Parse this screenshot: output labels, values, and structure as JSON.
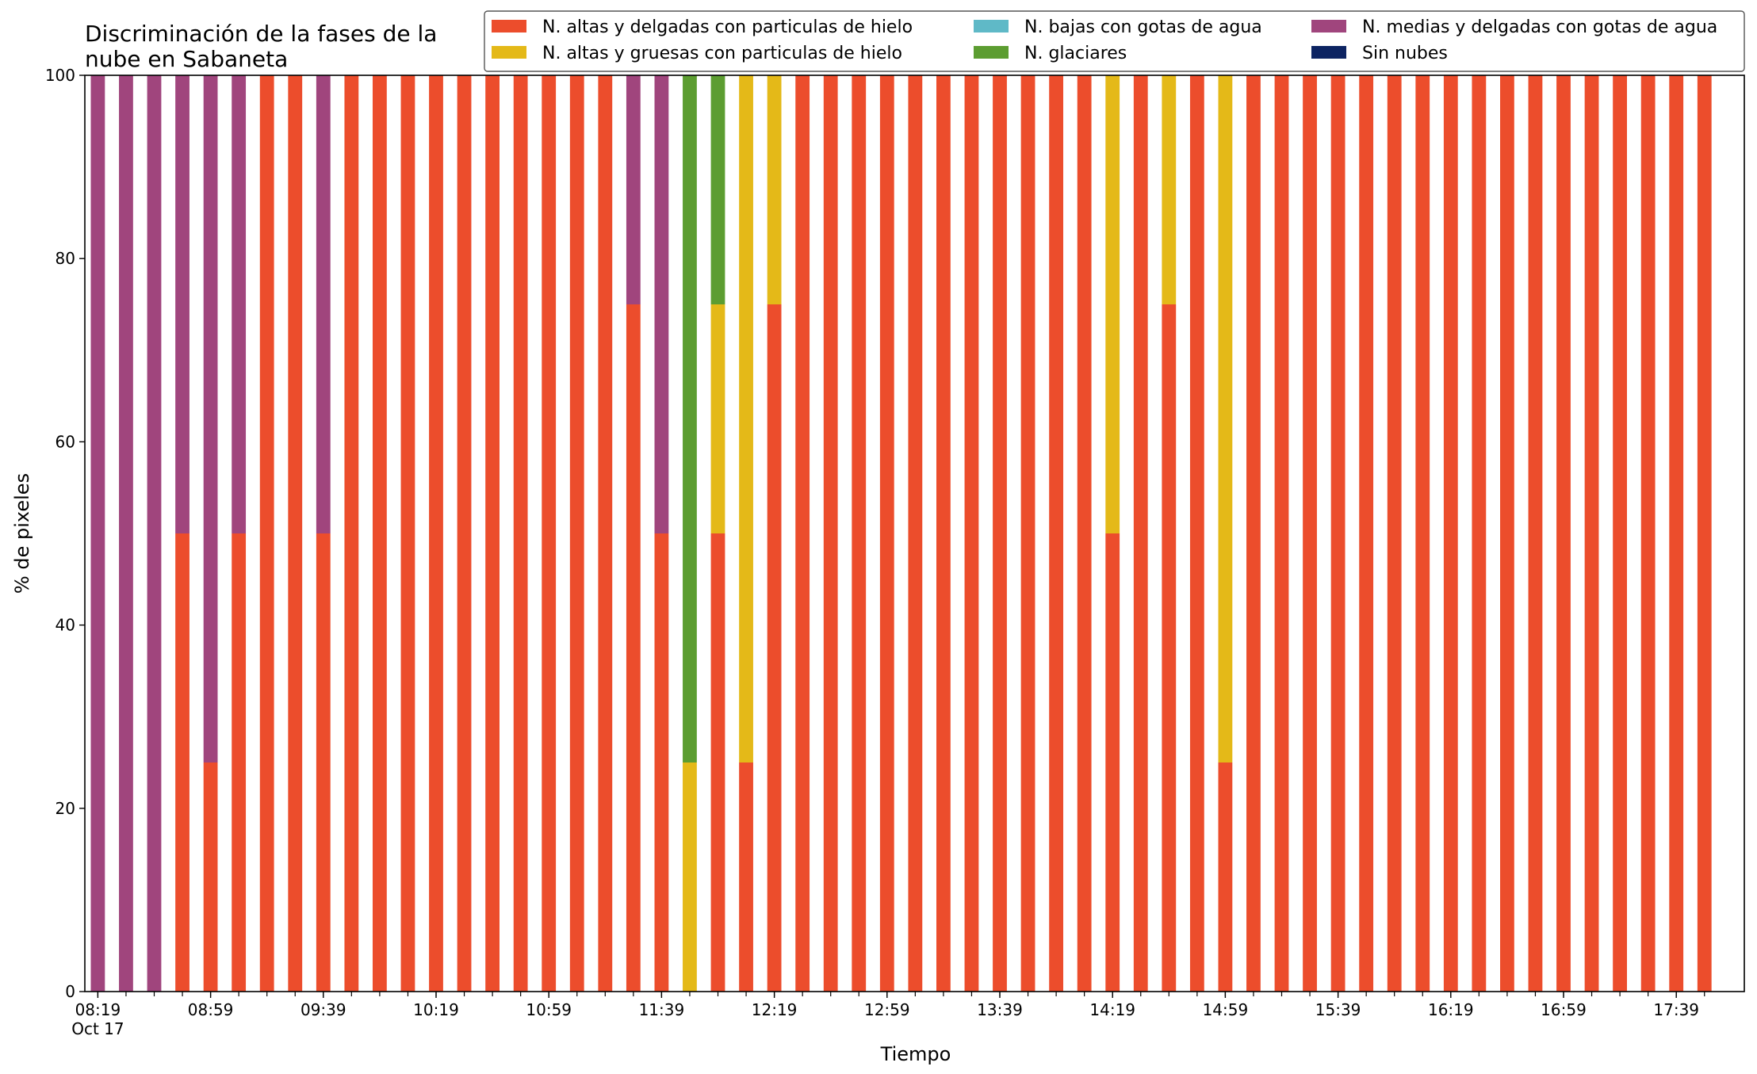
{
  "chart_data": {
    "type": "bar",
    "stacked": true,
    "title_lines": [
      "Discriminación de la fases de la",
      "nube en Sabaneta"
    ],
    "xlabel": "Tiempo",
    "ylabel": "% de pixeles",
    "ylim": [
      0,
      100
    ],
    "yticks": [
      0,
      20,
      40,
      60,
      80,
      100
    ],
    "x_tick_labels": [
      {
        "index": 0,
        "label": "08:19",
        "sublabel": "Oct 17"
      },
      {
        "index": 4,
        "label": "08:59"
      },
      {
        "index": 8,
        "label": "09:39"
      },
      {
        "index": 12,
        "label": "10:19"
      },
      {
        "index": 16,
        "label": "10:59"
      },
      {
        "index": 20,
        "label": "11:39"
      },
      {
        "index": 24,
        "label": "12:19"
      },
      {
        "index": 28,
        "label": "12:59"
      },
      {
        "index": 32,
        "label": "13:39"
      },
      {
        "index": 36,
        "label": "14:19"
      },
      {
        "index": 40,
        "label": "14:59"
      },
      {
        "index": 44,
        "label": "15:39"
      },
      {
        "index": 48,
        "label": "16:19"
      },
      {
        "index": 52,
        "label": "16:59"
      },
      {
        "index": 56,
        "label": "17:39"
      }
    ],
    "bar_count": 58,
    "legend_position": "top-right",
    "grid": false,
    "series": [
      {
        "name": "N. altas y delgadas con particulas de hielo",
        "color": "#ec4d2c",
        "values": [
          0,
          0,
          0,
          50,
          25,
          50,
          100,
          100,
          50,
          100,
          100,
          100,
          100,
          100,
          100,
          100,
          100,
          100,
          100,
          75,
          50,
          0,
          50,
          25,
          75,
          100,
          100,
          100,
          100,
          100,
          100,
          100,
          100,
          100,
          100,
          100,
          50,
          100,
          75,
          100,
          25,
          100,
          100,
          100,
          100,
          100,
          100,
          100,
          100,
          100,
          100,
          100,
          100,
          100,
          100,
          100,
          100,
          100
        ]
      },
      {
        "name": "N. altas y gruesas con particulas de hielo",
        "color": "#e4b918",
        "values": [
          0,
          0,
          0,
          0,
          0,
          0,
          0,
          0,
          0,
          0,
          0,
          0,
          0,
          0,
          0,
          0,
          0,
          0,
          0,
          0,
          0,
          25,
          25,
          75,
          25,
          0,
          0,
          0,
          0,
          0,
          0,
          0,
          0,
          0,
          0,
          0,
          50,
          0,
          25,
          0,
          75,
          0,
          0,
          0,
          0,
          0,
          0,
          0,
          0,
          0,
          0,
          0,
          0,
          0,
          0,
          0,
          0,
          0
        ]
      },
      {
        "name": "N. bajas con gotas de agua",
        "color": "#5fb9c7",
        "values": [
          0,
          0,
          0,
          0,
          0,
          0,
          0,
          0,
          0,
          0,
          0,
          0,
          0,
          0,
          0,
          0,
          0,
          0,
          0,
          0,
          0,
          0,
          0,
          0,
          0,
          0,
          0,
          0,
          0,
          0,
          0,
          0,
          0,
          0,
          0,
          0,
          0,
          0,
          0,
          0,
          0,
          0,
          0,
          0,
          0,
          0,
          0,
          0,
          0,
          0,
          0,
          0,
          0,
          0,
          0,
          0,
          0,
          0
        ]
      },
      {
        "name": "N. glaciares",
        "color": "#5c9d31",
        "values": [
          0,
          0,
          0,
          0,
          0,
          0,
          0,
          0,
          0,
          0,
          0,
          0,
          0,
          0,
          0,
          0,
          0,
          0,
          0,
          0,
          0,
          75,
          25,
          0,
          0,
          0,
          0,
          0,
          0,
          0,
          0,
          0,
          0,
          0,
          0,
          0,
          0,
          0,
          0,
          0,
          0,
          0,
          0,
          0,
          0,
          0,
          0,
          0,
          0,
          0,
          0,
          0,
          0,
          0,
          0,
          0,
          0,
          0
        ]
      },
      {
        "name": "N. medias y delgadas con gotas de agua",
        "color": "#a0457d",
        "values": [
          100,
          100,
          100,
          50,
          75,
          50,
          0,
          0,
          50,
          0,
          0,
          0,
          0,
          0,
          0,
          0,
          0,
          0,
          0,
          25,
          50,
          0,
          0,
          0,
          0,
          0,
          0,
          0,
          0,
          0,
          0,
          0,
          0,
          0,
          0,
          0,
          0,
          0,
          0,
          0,
          0,
          0,
          0,
          0,
          0,
          0,
          0,
          0,
          0,
          0,
          0,
          0,
          0,
          0,
          0,
          0,
          0,
          0
        ]
      },
      {
        "name": "Sin nubes",
        "color": "#0d2462",
        "values": [
          0,
          0,
          0,
          0,
          0,
          0,
          0,
          0,
          0,
          0,
          0,
          0,
          0,
          0,
          0,
          0,
          0,
          0,
          0,
          0,
          0,
          0,
          0,
          0,
          0,
          0,
          0,
          0,
          0,
          0,
          0,
          0,
          0,
          0,
          0,
          0,
          0,
          0,
          0,
          0,
          0,
          0,
          0,
          0,
          0,
          0,
          0,
          0,
          0,
          0,
          0,
          0,
          0,
          0,
          0,
          0,
          0,
          0
        ]
      }
    ]
  }
}
